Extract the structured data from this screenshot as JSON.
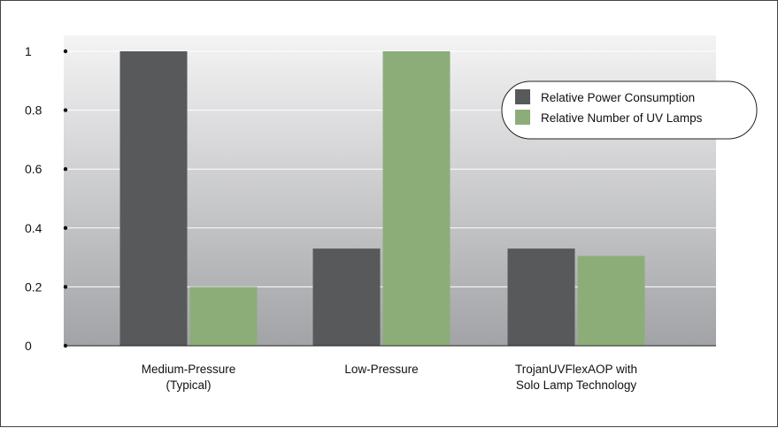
{
  "chart_data": {
    "type": "bar",
    "categories": [
      [
        "Medium-Pressure",
        "(Typical)"
      ],
      [
        "Low-Pressure"
      ],
      [
        "TrojanUVFlexAOP with",
        "Solo Lamp Technology"
      ]
    ],
    "series": [
      {
        "name": "Relative Power Consumption",
        "color": "#58595b",
        "values": [
          1.0,
          0.33,
          0.33
        ]
      },
      {
        "name": "Relative Number of UV Lamps",
        "color": "#8cad78",
        "values": [
          0.2,
          1.0,
          0.305
        ]
      }
    ],
    "yticks": [
      "0",
      "0.2",
      "0.4",
      "0.6",
      "0.8",
      "1"
    ],
    "ylim": [
      0,
      1
    ],
    "grid": true,
    "legend_position": "top-right",
    "title": "",
    "xlabel": "",
    "ylabel": ""
  }
}
